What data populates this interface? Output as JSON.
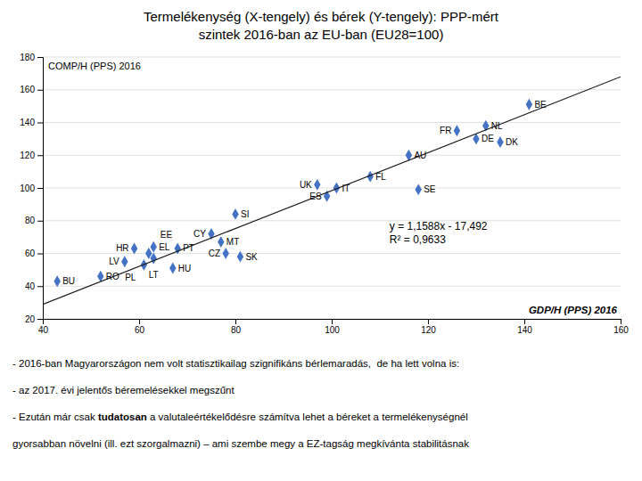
{
  "chart_data": {
    "type": "scatter",
    "title": [
      "Termelékenység (X-tengely) és bérek (Y-tengely): PPP-mért",
      "szintek 2016-ban az EU-ban (EU28=100)"
    ],
    "x_label": "GDP/H (PPS) 2016",
    "y_label": "COMP/H (PPS) 2016",
    "xlim": [
      40,
      160
    ],
    "ylim": [
      20,
      180
    ],
    "xticks": [
      40,
      60,
      80,
      100,
      120,
      140,
      160
    ],
    "yticks": [
      20,
      40,
      60,
      80,
      100,
      120,
      140,
      160,
      180
    ],
    "grid": "y",
    "series": [
      {
        "type": "scatter",
        "color": "#4472C4",
        "marker": "diamond",
        "labels": [
          "BE",
          "NL",
          "FR",
          "DE",
          "DK",
          "AU",
          "FL",
          "UK",
          "IT",
          "ES",
          "SE",
          "SI",
          "CY",
          "MT",
          "EL",
          "PT",
          "HR",
          "EE",
          "LT",
          "CZ",
          "SK",
          "LV",
          "PL",
          "HU",
          "RO",
          "BU"
        ],
        "x": [
          141,
          132,
          126,
          130,
          135,
          116,
          108,
          97,
          101,
          99,
          118,
          80,
          75,
          77,
          63,
          68,
          59,
          62,
          63,
          78,
          81,
          57,
          61,
          67,
          52,
          43
        ],
        "values": [
          151,
          138,
          135,
          130,
          128,
          120,
          107,
          102,
          100,
          95,
          99,
          84,
          72,
          67,
          64,
          63,
          63,
          60,
          57,
          60,
          58,
          55,
          53,
          51,
          46,
          43
        ]
      },
      {
        "type": "line",
        "color": "#1a1a1a",
        "x": [
          40,
          160
        ],
        "values": [
          28.86,
          167.916
        ]
      }
    ],
    "annotations": [
      "y = 1,1588x - 17,492",
      "R² = 0,9633"
    ],
    "footnotes": [
      "- 2016-ban Magyarországon nem volt statisztikailag szignifikáns bérlemaradás,  de ha lett volna is:",
      "- az 2017. évi jelentős béremelésekkel megszűnt",
      [
        "- Ezután már csak ",
        "tudatosan",
        " a valutaleértékelődésre számítva lehet a béreket a termelékenységnél"
      ],
      "gyorsabban növelni (ill. ezt szorgalmazni) – ami szembe megy a EZ-tagság megkívánta stabilitásnak"
    ]
  }
}
